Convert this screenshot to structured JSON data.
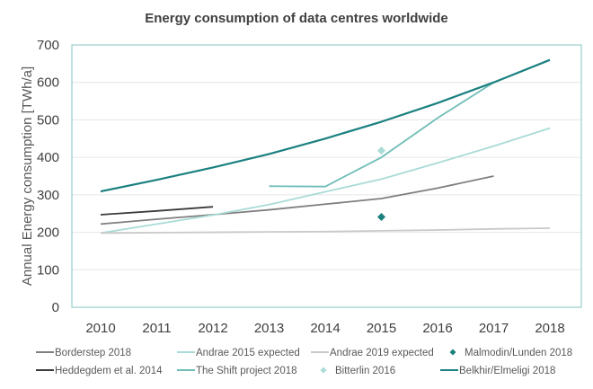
{
  "chart_data": {
    "type": "line",
    "title": "Energy consumption of data centres worldwide",
    "xlabel": "",
    "ylabel": "Annual Energy consumption [TWh/a]",
    "x": [
      2010,
      2011,
      2012,
      2013,
      2014,
      2015,
      2016,
      2017,
      2018
    ],
    "ylim": [
      0,
      700
    ],
    "yticks": [
      0,
      100,
      200,
      300,
      400,
      500,
      600,
      700
    ],
    "grid": true,
    "legend_placement": "bottom",
    "series": [
      {
        "name": "Borderstep 2018",
        "color": "#7f7f7f",
        "marker": "line",
        "values": [
          222,
          235,
          247,
          260,
          275,
          290,
          318,
          350,
          null
        ]
      },
      {
        "name": "Andrae 2015 expected",
        "color": "#a9dbd7",
        "marker": "line",
        "values": [
          198,
          222,
          246,
          274,
          308,
          342,
          385,
          430,
          478
        ]
      },
      {
        "name": "Andrae 2019 expected",
        "color": "#c9c9c9",
        "marker": "line",
        "values": [
          198,
          199,
          200,
          201,
          202,
          204,
          206,
          209,
          211
        ]
      },
      {
        "name": "Malmodin/Lunden 2018",
        "color": "#1b7f7d",
        "marker": "diamond",
        "values": [
          null,
          null,
          null,
          null,
          null,
          241,
          null,
          null,
          null
        ]
      },
      {
        "name": "Heddegdem et al. 2014",
        "color": "#3b3b3b",
        "marker": "line",
        "values": [
          247,
          257,
          268,
          null,
          null,
          null,
          null,
          null,
          null
        ]
      },
      {
        "name": "The Shift project 2018",
        "color": "#6fbdb8",
        "marker": "line",
        "values": [
          null,
          null,
          null,
          323,
          322,
          400,
          505,
          600,
          null
        ]
      },
      {
        "name": "Bitterlin 2016",
        "color": "#a9dbd7",
        "marker": "diamond",
        "values": [
          null,
          null,
          null,
          null,
          null,
          418,
          null,
          null,
          null
        ]
      },
      {
        "name": "Belkhir/Elmeligi 2018",
        "color": "#1b8080",
        "marker": "line",
        "values": [
          309,
          340,
          373,
          409,
          450,
          495,
          545,
          600,
          660
        ]
      }
    ]
  }
}
